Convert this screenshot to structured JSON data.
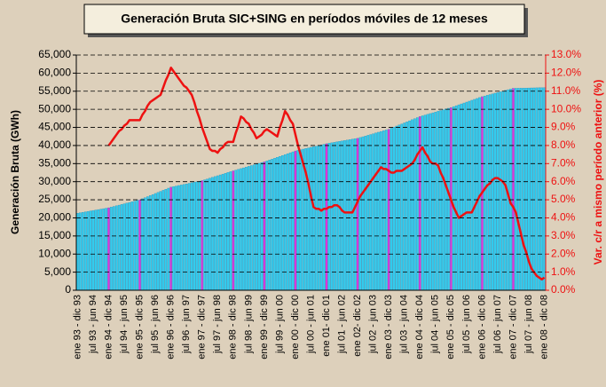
{
  "chart_data": {
    "type": "bar",
    "title": "Generación Bruta SIC+SING en períodos móviles de 12 meses",
    "y_label": "Generación Bruta (GWh)",
    "y2_label": "Var. c/r a mismo período anterior (%)",
    "categories": [
      "ene 93 - dic 93",
      null,
      null,
      null,
      null,
      null,
      "jul 93 - jun 94",
      null,
      null,
      null,
      null,
      null,
      "ene 94 - dic 94",
      null,
      null,
      null,
      null,
      null,
      "jul 94 - jun 95",
      null,
      null,
      null,
      null,
      null,
      "ene 95 - dic 95",
      null,
      null,
      null,
      null,
      null,
      "jul 95 - jun 96",
      null,
      null,
      null,
      null,
      null,
      "ene 96 - dic 96",
      null,
      null,
      null,
      null,
      null,
      "jul 96 - jun 97",
      null,
      null,
      null,
      null,
      null,
      "ene 97 - dic 97",
      null,
      null,
      null,
      null,
      null,
      "jul 97 - jun 98",
      null,
      null,
      null,
      null,
      null,
      "ene 98 - dic 98",
      null,
      null,
      null,
      null,
      null,
      "jul 98 - jun 99",
      null,
      null,
      null,
      null,
      null,
      "ene 99 - dic 99",
      null,
      null,
      null,
      null,
      null,
      "jul 99 - jun 00",
      null,
      null,
      null,
      null,
      null,
      "ene 00 - dic 00",
      null,
      null,
      null,
      null,
      null,
      "jul 00 - jun 01",
      null,
      null,
      null,
      null,
      null,
      "ene 01- dic 01",
      null,
      null,
      null,
      null,
      null,
      "jul 01 - jun 02",
      null,
      null,
      null,
      null,
      null,
      "ene 02- dic 02",
      null,
      null,
      null,
      null,
      null,
      "jul 02 - jun 03",
      null,
      null,
      null,
      null,
      null,
      "ene 03 - dic 03",
      null,
      null,
      null,
      null,
      null,
      "jul 03 - jun 04",
      null,
      null,
      null,
      null,
      null,
      "ene 04 - dic 04",
      null,
      null,
      null,
      null,
      null,
      "jul 04 - jun 05",
      null,
      null,
      null,
      null,
      null,
      "ene 05 - dic 05",
      null,
      null,
      null,
      null,
      null,
      "jul 05 - jun 06",
      null,
      null,
      null,
      null,
      null,
      "ene 06 - dic 06",
      null,
      null,
      null,
      null,
      null,
      "jul 06 - jun 07",
      null,
      null,
      null,
      null,
      null,
      "ene 07 - dic 07",
      null,
      null,
      null,
      null,
      null,
      "jul 07 - jun 08",
      null,
      null,
      null,
      null,
      null,
      "ene 08 - dic 08"
    ],
    "series": [
      {
        "color": "#33ccee",
        "colors": [
          "#33ccee",
          "#33ccee",
          "#33ccee",
          "#33ccee",
          "#33ccee",
          "#33ccee",
          "#33ccee",
          "#33ccee",
          "#33ccee",
          "#33ccee",
          "#33ccee",
          "#33ccee",
          "#dd33dd",
          "#33ccee",
          "#33ccee",
          "#33ccee",
          "#33ccee",
          "#33ccee",
          "#33ccee",
          "#33ccee",
          "#33ccee",
          "#33ccee",
          "#33ccee",
          "#33ccee",
          "#dd33dd",
          "#33ccee",
          "#33ccee",
          "#33ccee",
          "#33ccee",
          "#33ccee",
          "#33ccee",
          "#33ccee",
          "#33ccee",
          "#33ccee",
          "#33ccee",
          "#33ccee",
          "#dd33dd",
          "#33ccee",
          "#33ccee",
          "#33ccee",
          "#33ccee",
          "#33ccee",
          "#33ccee",
          "#33ccee",
          "#33ccee",
          "#33ccee",
          "#33ccee",
          "#33ccee",
          "#dd33dd",
          "#33ccee",
          "#33ccee",
          "#33ccee",
          "#33ccee",
          "#33ccee",
          "#33ccee",
          "#33ccee",
          "#33ccee",
          "#33ccee",
          "#33ccee",
          "#33ccee",
          "#dd33dd",
          "#33ccee",
          "#33ccee",
          "#33ccee",
          "#33ccee",
          "#33ccee",
          "#33ccee",
          "#33ccee",
          "#33ccee",
          "#33ccee",
          "#33ccee",
          "#33ccee",
          "#dd33dd",
          "#33ccee",
          "#33ccee",
          "#33ccee",
          "#33ccee",
          "#33ccee",
          "#33ccee",
          "#33ccee",
          "#33ccee",
          "#33ccee",
          "#33ccee",
          "#33ccee",
          "#dd33dd",
          "#33ccee",
          "#33ccee",
          "#33ccee",
          "#33ccee",
          "#33ccee",
          "#33ccee",
          "#33ccee",
          "#33ccee",
          "#33ccee",
          "#33ccee",
          "#33ccee",
          "#dd33dd",
          "#33ccee",
          "#33ccee",
          "#33ccee",
          "#33ccee",
          "#33ccee",
          "#33ccee",
          "#33ccee",
          "#33ccee",
          "#33ccee",
          "#33ccee",
          "#33ccee",
          "#dd33dd",
          "#33ccee",
          "#33ccee",
          "#33ccee",
          "#33ccee",
          "#33ccee",
          "#33ccee",
          "#33ccee",
          "#33ccee",
          "#33ccee",
          "#33ccee",
          "#33ccee",
          "#dd33dd",
          "#33ccee",
          "#33ccee",
          "#33ccee",
          "#33ccee",
          "#33ccee",
          "#33ccee",
          "#33ccee",
          "#33ccee",
          "#33ccee",
          "#33ccee",
          "#33ccee",
          "#dd33dd",
          "#33ccee",
          "#33ccee",
          "#33ccee",
          "#33ccee",
          "#33ccee",
          "#33ccee",
          "#33ccee",
          "#33ccee",
          "#33ccee",
          "#33ccee",
          "#33ccee",
          "#dd33dd",
          "#33ccee",
          "#33ccee",
          "#33ccee",
          "#33ccee",
          "#33ccee",
          "#33ccee",
          "#33ccee",
          "#33ccee",
          "#33ccee",
          "#33ccee",
          "#33ccee",
          "#dd33dd",
          "#33ccee",
          "#33ccee",
          "#33ccee",
          "#33ccee",
          "#33ccee",
          "#33ccee",
          "#33ccee",
          "#33ccee",
          "#33ccee",
          "#33ccee",
          "#33ccee",
          "#dd33dd",
          "#33ccee",
          "#33ccee",
          "#33ccee",
          "#33ccee",
          "#33ccee",
          "#33ccee",
          "#33ccee",
          "#33ccee",
          "#33ccee",
          "#33ccee",
          "#33ccee",
          "#33ccee"
        ],
        "values": [
          21300,
          21430,
          21550,
          21680,
          21800,
          21930,
          22050,
          22180,
          22300,
          22430,
          22550,
          22680,
          22800,
          22980,
          23170,
          23350,
          23530,
          23720,
          23900,
          24080,
          24270,
          24450,
          24630,
          24820,
          25000,
          25290,
          25580,
          25880,
          26170,
          26460,
          26750,
          27040,
          27330,
          27630,
          27920,
          28210,
          28500,
          28650,
          28800,
          28950,
          29100,
          29250,
          29400,
          29550,
          29700,
          29850,
          30000,
          30150,
          30300,
          30530,
          30750,
          30980,
          31200,
          31430,
          31650,
          31880,
          32100,
          32330,
          32550,
          32780,
          33000,
          33210,
          33420,
          33630,
          33830,
          34040,
          34250,
          34460,
          34670,
          34880,
          35080,
          35290,
          35500,
          35750,
          36000,
          36250,
          36500,
          36750,
          37000,
          37250,
          37500,
          37750,
          38000,
          38250,
          38500,
          38670,
          38830,
          39000,
          39170,
          39330,
          39500,
          39670,
          39830,
          40000,
          40170,
          40330,
          40500,
          40630,
          40750,
          40880,
          41000,
          41130,
          41250,
          41380,
          41500,
          41630,
          41750,
          41880,
          42000,
          42210,
          42420,
          42630,
          42830,
          43040,
          43250,
          43460,
          43670,
          43880,
          44080,
          44290,
          44500,
          44790,
          45080,
          45380,
          45670,
          45960,
          46250,
          46540,
          46830,
          47130,
          47420,
          47710,
          48000,
          48210,
          48420,
          48630,
          48830,
          49040,
          49250,
          49460,
          49670,
          49880,
          50080,
          50290,
          50500,
          50750,
          51000,
          51250,
          51500,
          51750,
          52000,
          52250,
          52500,
          52750,
          53000,
          53250,
          53500,
          53690,
          53880,
          54080,
          54270,
          54460,
          54650,
          54840,
          55030,
          55230,
          55420,
          55610,
          55800,
          55820,
          55830,
          55850,
          55870,
          55880,
          55900,
          55920,
          55930,
          55950,
          55970,
          55980,
          56000
        ]
      },
      {
        "type": "line",
        "axis": "y2",
        "color": "#ee1111",
        "values": [
          null,
          null,
          null,
          null,
          null,
          null,
          null,
          null,
          null,
          null,
          null,
          null,
          8.0,
          8.2,
          8.4,
          8.6,
          8.8,
          8.9,
          9.1,
          9.2,
          9.4,
          9.4,
          9.4,
          9.4,
          9.4,
          9.7,
          9.9,
          10.2,
          10.4,
          10.5,
          10.6,
          10.7,
          10.8,
          11.2,
          11.6,
          11.9,
          12.3,
          12.1,
          11.9,
          11.7,
          11.5,
          11.3,
          11.2,
          11.0,
          10.8,
          10.4,
          9.9,
          9.5,
          9.0,
          8.6,
          8.2,
          7.8,
          7.7,
          7.7,
          7.6,
          7.8,
          7.9,
          8.1,
          8.2,
          8.2,
          8.2,
          8.7,
          9.1,
          9.6,
          9.5,
          9.3,
          9.2,
          8.9,
          8.7,
          8.4,
          8.5,
          8.6,
          8.8,
          8.9,
          8.8,
          8.7,
          8.6,
          8.5,
          9.0,
          9.4,
          9.9,
          9.7,
          9.4,
          9.2,
          8.6,
          8.0,
          7.5,
          7.0,
          6.5,
          5.9,
          5.2,
          4.6,
          4.5,
          4.5,
          4.4,
          4.5,
          4.5,
          4.6,
          4.6,
          4.7,
          4.7,
          4.6,
          4.4,
          4.3,
          4.3,
          4.3,
          4.3,
          4.6,
          4.9,
          5.2,
          5.4,
          5.6,
          5.8,
          6.0,
          6.2,
          6.4,
          6.6,
          6.8,
          6.7,
          6.7,
          6.6,
          6.5,
          6.5,
          6.6,
          6.6,
          6.6,
          6.7,
          6.8,
          6.9,
          7.0,
          7.2,
          7.5,
          7.7,
          7.9,
          7.6,
          7.4,
          7.1,
          7.0,
          7.0,
          6.9,
          6.5,
          6.2,
          5.8,
          5.4,
          5.0,
          4.6,
          4.3,
          4.0,
          4.1,
          4.2,
          4.3,
          4.3,
          4.3,
          4.6,
          4.9,
          5.2,
          5.4,
          5.6,
          5.8,
          5.9,
          6.1,
          6.2,
          6.2,
          6.1,
          6.0,
          5.8,
          5.3,
          4.8,
          4.6,
          4.3,
          3.7,
          3.1,
          2.5,
          2.1,
          1.6,
          1.2,
          1.0,
          0.8,
          0.7,
          0.6,
          0.7
        ]
      }
    ],
    "ylim": [
      0,
      65000
    ],
    "yticks": [
      0,
      {
        "value": 5000,
        "label": "5,000"
      },
      {
        "value": 10000,
        "label": "10,000"
      },
      {
        "value": 15000,
        "label": "15,000"
      },
      {
        "value": 20000,
        "label": "20,000"
      },
      {
        "value": 25000,
        "label": "25,000"
      },
      {
        "value": 30000,
        "label": "30,000"
      },
      {
        "value": 35000,
        "label": "35,000"
      },
      {
        "value": 40000,
        "label": "40,000"
      },
      {
        "value": 45000,
        "label": "45,000"
      },
      {
        "value": 50000,
        "label": "50,000"
      },
      {
        "value": 55000,
        "label": "55,000"
      },
      {
        "value": 60000,
        "label": "60,000"
      },
      {
        "value": 65000,
        "label": "65,000"
      }
    ],
    "y2lim": [
      0,
      13
    ],
    "y2ticks": [
      {
        "value": 0,
        "label": "0.0%"
      },
      {
        "value": 1,
        "label": "1.0%"
      },
      {
        "value": 2,
        "label": "2.0%"
      },
      {
        "value": 3,
        "label": "3.0%"
      },
      {
        "value": 4,
        "label": "4.0%"
      },
      {
        "value": 5,
        "label": "5.0%"
      },
      {
        "value": 6,
        "label": "6.0%"
      },
      {
        "value": 7,
        "label": "7.0%"
      },
      {
        "value": 8,
        "label": "8.0%"
      },
      {
        "value": 9,
        "label": "9.0%"
      },
      {
        "value": 10,
        "label": "10.0%"
      },
      {
        "value": 11,
        "label": "11.0%"
      },
      {
        "value": 12,
        "label": "12.0%"
      },
      {
        "value": 13,
        "label": "13.0%"
      }
    ],
    "grid": true
  }
}
